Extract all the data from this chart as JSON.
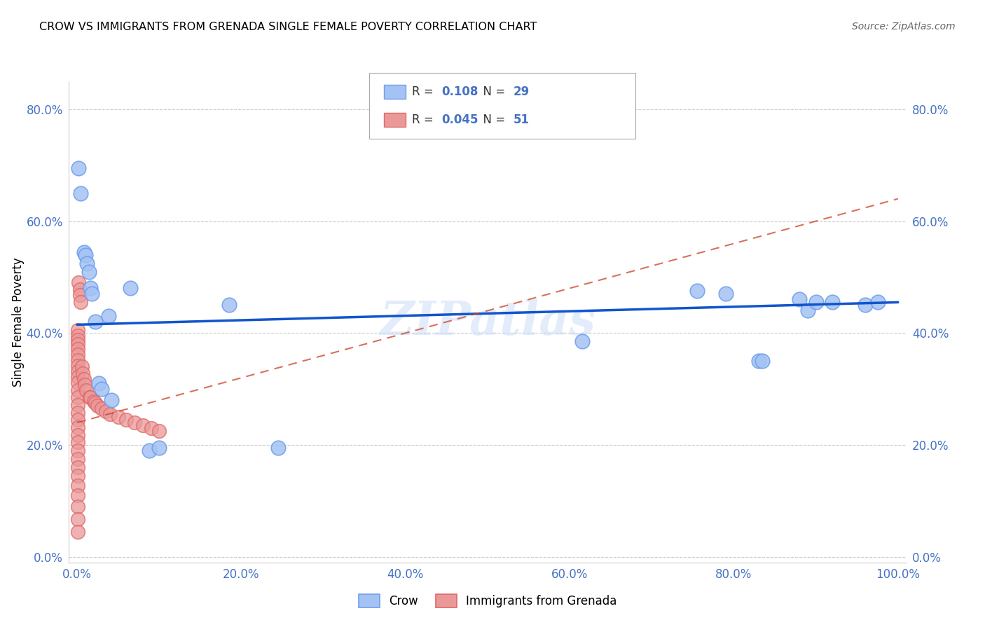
{
  "title": "CROW VS IMMIGRANTS FROM GRENADA SINGLE FEMALE POVERTY CORRELATION CHART",
  "source": "Source: ZipAtlas.com",
  "ylabel_label": "Single Female Poverty",
  "legend_label1": "Crow",
  "legend_label2": "Immigrants from Grenada",
  "R1": 0.108,
  "N1": 29,
  "R2": 0.045,
  "N2": 51,
  "blue_color": "#a4c2f4",
  "blue_edge_color": "#6d9eeb",
  "pink_color": "#ea9999",
  "pink_edge_color": "#e06666",
  "blue_line_color": "#1155cc",
  "pink_line_color": "#cc4125",
  "grid_color": "#cccccc",
  "watermark": "ZIPatlas",
  "tick_color": "#4472c4",
  "xlim": [
    0.0,
    1.0
  ],
  "ylim": [
    0.0,
    0.85
  ],
  "xticks": [
    0.0,
    0.2,
    0.4,
    0.6,
    0.8,
    1.0
  ],
  "yticks": [
    0.0,
    0.2,
    0.4,
    0.6,
    0.8
  ],
  "blue_line_x": [
    0.0,
    1.0
  ],
  "blue_line_y": [
    0.415,
    0.455
  ],
  "pink_line_x": [
    0.0,
    1.0
  ],
  "pink_line_y": [
    0.24,
    0.64
  ],
  "blue_dots": [
    [
      0.002,
      0.695
    ],
    [
      0.004,
      0.65
    ],
    [
      0.008,
      0.545
    ],
    [
      0.01,
      0.54
    ],
    [
      0.012,
      0.525
    ],
    [
      0.014,
      0.51
    ],
    [
      0.016,
      0.48
    ],
    [
      0.018,
      0.47
    ],
    [
      0.022,
      0.42
    ],
    [
      0.026,
      0.31
    ],
    [
      0.03,
      0.3
    ],
    [
      0.038,
      0.43
    ],
    [
      0.042,
      0.28
    ],
    [
      0.065,
      0.48
    ],
    [
      0.088,
      0.19
    ],
    [
      0.1,
      0.195
    ],
    [
      0.185,
      0.45
    ],
    [
      0.245,
      0.195
    ],
    [
      0.615,
      0.385
    ],
    [
      0.755,
      0.475
    ],
    [
      0.79,
      0.47
    ],
    [
      0.83,
      0.35
    ],
    [
      0.835,
      0.35
    ],
    [
      0.88,
      0.46
    ],
    [
      0.89,
      0.44
    ],
    [
      0.9,
      0.455
    ],
    [
      0.92,
      0.455
    ],
    [
      0.96,
      0.45
    ],
    [
      0.975,
      0.455
    ]
  ],
  "pink_dots": [
    [
      0.001,
      0.405
    ],
    [
      0.001,
      0.395
    ],
    [
      0.001,
      0.388
    ],
    [
      0.001,
      0.38
    ],
    [
      0.001,
      0.372
    ],
    [
      0.001,
      0.362
    ],
    [
      0.001,
      0.352
    ],
    [
      0.001,
      0.342
    ],
    [
      0.001,
      0.332
    ],
    [
      0.001,
      0.322
    ],
    [
      0.001,
      0.312
    ],
    [
      0.001,
      0.298
    ],
    [
      0.001,
      0.285
    ],
    [
      0.001,
      0.272
    ],
    [
      0.001,
      0.258
    ],
    [
      0.001,
      0.245
    ],
    [
      0.001,
      0.232
    ],
    [
      0.001,
      0.218
    ],
    [
      0.001,
      0.205
    ],
    [
      0.001,
      0.19
    ],
    [
      0.001,
      0.175
    ],
    [
      0.001,
      0.16
    ],
    [
      0.001,
      0.145
    ],
    [
      0.001,
      0.128
    ],
    [
      0.001,
      0.11
    ],
    [
      0.001,
      0.09
    ],
    [
      0.001,
      0.068
    ],
    [
      0.001,
      0.045
    ],
    [
      0.002,
      0.49
    ],
    [
      0.003,
      0.478
    ],
    [
      0.003,
      0.468
    ],
    [
      0.004,
      0.455
    ],
    [
      0.006,
      0.34
    ],
    [
      0.007,
      0.328
    ],
    [
      0.008,
      0.318
    ],
    [
      0.009,
      0.308
    ],
    [
      0.011,
      0.298
    ],
    [
      0.015,
      0.285
    ],
    [
      0.016,
      0.285
    ],
    [
      0.02,
      0.278
    ],
    [
      0.022,
      0.275
    ],
    [
      0.025,
      0.27
    ],
    [
      0.03,
      0.265
    ],
    [
      0.035,
      0.26
    ],
    [
      0.04,
      0.255
    ],
    [
      0.05,
      0.25
    ],
    [
      0.06,
      0.245
    ],
    [
      0.07,
      0.24
    ],
    [
      0.08,
      0.235
    ],
    [
      0.09,
      0.23
    ],
    [
      0.1,
      0.225
    ]
  ]
}
